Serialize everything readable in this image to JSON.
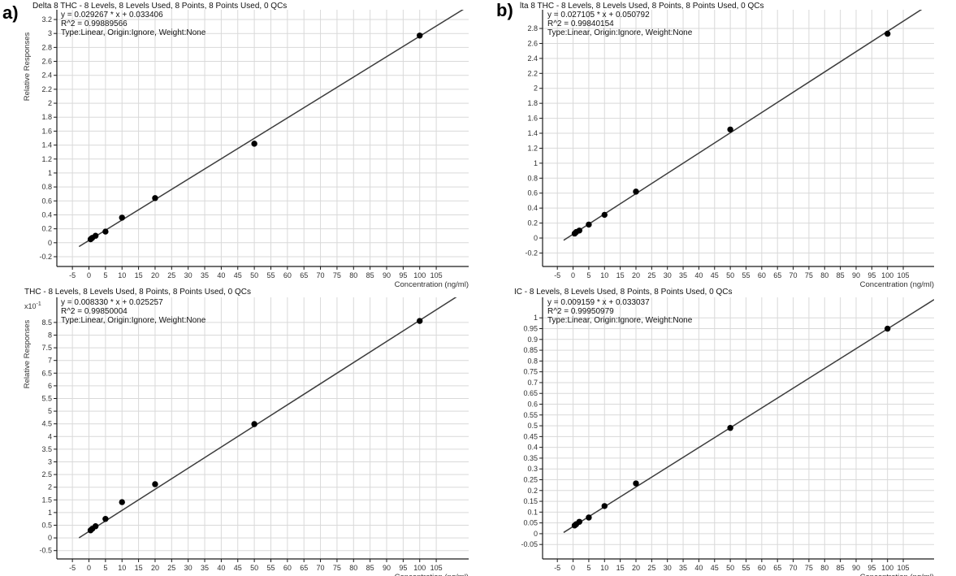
{
  "figure": {
    "panel_labels": {
      "a": "a)",
      "b": "b)"
    },
    "x_axis_label": "Concentration (ng/ml)",
    "y_axis_label": "Relative Responses"
  },
  "colors": {
    "background": "#ffffff",
    "grid": "#d9d9d9",
    "axis": "#1a1a1a",
    "tick_text": "#303030",
    "regression_line": "#3c3c3c",
    "point": "#000000",
    "text": "#111111"
  },
  "chart_data": [
    {
      "id": "delta8-thc-panel-a-top",
      "type": "scatter",
      "title": "Delta 8 THC - 8 Levels, 8 Levels Used, 8 Points, 8 Points Used, 0 QCs",
      "annotation": {
        "equation": "y = 0.029267 * x  + 0.033406",
        "r_squared": "R^2 = 0.99889566",
        "fit": "Type:Linear, Origin:Ignore, Weight:None"
      },
      "regression": {
        "slope": 0.029267,
        "intercept": 0.033406,
        "display_factor": 1
      },
      "xlabel": "Concentration (ng/ml)",
      "ylabel": "Relative Responses",
      "y_scale_label": null,
      "x": [
        0.5,
        1,
        2,
        5,
        10,
        20,
        50,
        100
      ],
      "y": [
        0.05,
        0.07,
        0.1,
        0.16,
        0.36,
        0.64,
        1.42,
        2.97
      ],
      "x_ticks": {
        "start": -5,
        "end": 105,
        "step": 5
      },
      "y_ticks": {
        "start": -0.2,
        "end": 3.2,
        "step": 0.2
      },
      "xlim": [
        -9.7,
        114.8
      ],
      "ylim": [
        -0.34,
        3.34
      ],
      "grid": true,
      "legend": "none"
    },
    {
      "id": "delta8-thc-panel-b-top",
      "type": "scatter",
      "title": "lta 8 THC - 8 Levels, 8 Levels Used, 8 Points, 8 Points Used, 0 QCs",
      "annotation": {
        "equation": "y = 0.027105 * x  + 0.050792",
        "r_squared": "R^2 = 0.99840154",
        "fit": "Type:Linear, Origin:Ignore, Weight:None"
      },
      "regression": {
        "slope": 0.027105,
        "intercept": 0.050792,
        "display_factor": 1
      },
      "xlabel": "Concentration (ng/ml)",
      "ylabel": null,
      "y_scale_label": null,
      "x": [
        0.5,
        1,
        2,
        5,
        10,
        20,
        50,
        100
      ],
      "y": [
        0.06,
        0.08,
        0.1,
        0.18,
        0.31,
        0.62,
        1.45,
        2.73
      ],
      "x_ticks": {
        "start": -5,
        "end": 105,
        "step": 5
      },
      "y_ticks": {
        "start": -0.2,
        "end": 2.8,
        "step": 0.2
      },
      "xlim": [
        -9.7,
        114.8
      ],
      "ylim": [
        -0.38,
        3.05
      ],
      "grid": true,
      "legend": "none"
    },
    {
      "id": "thc-panel-a-bottom",
      "type": "scatter",
      "title": "THC - 8 Levels, 8 Levels Used, 8 Points, 8 Points Used, 0 QCs",
      "annotation": {
        "equation": "y = 0.008330 * x  + 0.025257",
        "r_squared": "R^2 = 0.99850004",
        "fit": "Type:Linear, Origin:Ignore, Weight:None"
      },
      "regression": {
        "slope": 0.00833,
        "intercept": 0.025257,
        "display_factor": 10
      },
      "xlabel": "Concentration (ng/ml)",
      "ylabel": "Relative Responses",
      "y_scale_label": "x10-1",
      "x": [
        0.5,
        1,
        2,
        5,
        10,
        20,
        50,
        100
      ],
      "y": [
        0.3,
        0.36,
        0.46,
        0.75,
        1.41,
        2.12,
        4.49,
        8.56
      ],
      "x_ticks": {
        "start": -5,
        "end": 105,
        "step": 5
      },
      "y_ticks": {
        "start": -0.5,
        "end": 8.5,
        "step": 0.5
      },
      "xlim": [
        -9.7,
        114.8
      ],
      "ylim": [
        -0.83,
        9.49
      ],
      "grid": true,
      "legend": "none"
    },
    {
      "id": "thc-panel-b-bottom",
      "type": "scatter",
      "title": "IC - 8 Levels, 8 Levels Used, 8 Points, 8 Points Used, 0 QCs",
      "annotation": {
        "equation": "y = 0.009159 * x  + 0.033037",
        "r_squared": "R^2 = 0.99950979",
        "fit": "Type:Linear, Origin:Ignore, Weight:None"
      },
      "regression": {
        "slope": 0.009159,
        "intercept": 0.033037,
        "display_factor": 1
      },
      "xlabel": "Concentration (ng/ml)",
      "ylabel": null,
      "y_scale_label": null,
      "x": [
        0.5,
        1,
        2,
        5,
        10,
        20,
        50,
        100
      ],
      "y": [
        0.038,
        0.044,
        0.055,
        0.075,
        0.128,
        0.233,
        0.49,
        0.95
      ],
      "x_ticks": {
        "start": -5,
        "end": 105,
        "step": 5
      },
      "y_ticks": {
        "start": -0.05,
        "end": 1.0,
        "step": 0.05
      },
      "xlim": [
        -9.7,
        114.8
      ],
      "ylim": [
        -0.117,
        1.095
      ],
      "grid": true,
      "legend": "none"
    }
  ]
}
